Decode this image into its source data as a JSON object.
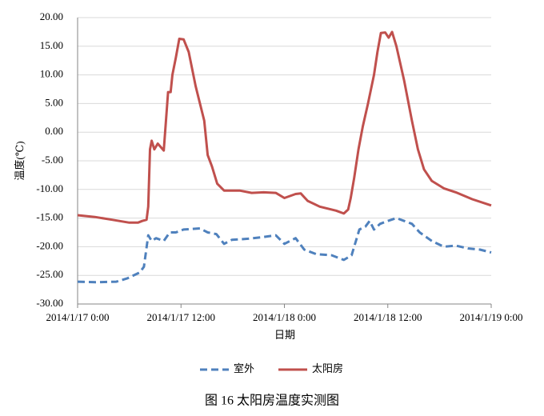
{
  "chart_data": {
    "type": "line",
    "caption": "图 16  太阳房温度实测图",
    "xlabel": "日期",
    "ylabel": "温度(℃)",
    "xlim": [
      0,
      48
    ],
    "xticks": [
      {
        "value": 0,
        "label": "2014/1/17 0:00"
      },
      {
        "value": 12,
        "label": "2014/1/17 12:00"
      },
      {
        "value": 24,
        "label": "2014/1/18 0:00"
      },
      {
        "value": 36,
        "label": "2014/1/18 12:00"
      },
      {
        "value": 48,
        "label": "2014/1/19 0:00"
      }
    ],
    "ylim": [
      -30,
      20
    ],
    "yticks": [
      {
        "value": 20,
        "label": "20.00"
      },
      {
        "value": 15,
        "label": "15.00"
      },
      {
        "value": 10,
        "label": "10.00"
      },
      {
        "value": 5,
        "label": "5.00"
      },
      {
        "value": 0,
        "label": "0.00"
      },
      {
        "value": -5,
        "label": "-5.00"
      },
      {
        "value": -10,
        "label": "-10.00"
      },
      {
        "value": -15,
        "label": "-15.00"
      },
      {
        "value": -20,
        "label": "-20.00"
      },
      {
        "value": -25,
        "label": "-25.00"
      },
      {
        "value": -30,
        "label": "-30.00"
      }
    ],
    "grid": true,
    "series": [
      {
        "name": "室外",
        "color": "#4f81bd",
        "dash": true,
        "x": [
          0,
          2.1,
          4.5,
          5.8,
          7.2,
          7.7,
          8.2,
          8.6,
          9.1,
          10,
          10.7,
          11.4,
          12.3,
          14.2,
          15.1,
          16.1,
          17,
          17.9,
          19.8,
          21.6,
          23,
          24,
          25.3,
          26.3,
          27.7,
          29.5,
          30.9,
          31.8,
          32.7,
          33.4,
          33.9,
          34.4,
          35.1,
          36,
          37,
          37.9,
          38.8,
          39.7,
          41.1,
          42.5,
          43.9,
          45.3,
          46.7,
          48
        ],
        "values": [
          -26.1,
          -26.2,
          -26.1,
          -25.5,
          -24.5,
          -23.5,
          -18,
          -19,
          -18.5,
          -19,
          -17.5,
          -17.5,
          -17,
          -16.8,
          -17.5,
          -17.8,
          -19.5,
          -18.8,
          -18.6,
          -18.3,
          -18,
          -19.5,
          -18.5,
          -20.5,
          -21.3,
          -21.5,
          -22.3,
          -21.5,
          -17,
          -16.5,
          -15.5,
          -17,
          -16,
          -15.5,
          -15,
          -15.5,
          -16,
          -17.5,
          -19,
          -20,
          -19.8,
          -20.3,
          -20.5,
          -21
        ]
      },
      {
        "name": "太阳房",
        "color": "#c0504d",
        "dash": false,
        "x": [
          0,
          2,
          4,
          6,
          7,
          7.5,
          8,
          8.2,
          8.4,
          8.6,
          8.9,
          9.3,
          10,
          10.5,
          10.8,
          11,
          11.4,
          11.8,
          12.3,
          12.9,
          13.7,
          14.7,
          15.1,
          15.6,
          16.2,
          17,
          18.8,
          20.2,
          21.6,
          23,
          24,
          25.3,
          25.9,
          26.7,
          28.1,
          30,
          30.9,
          31.4,
          31.7,
          32.1,
          32.6,
          33.1,
          33.7,
          34.4,
          34.8,
          35.2,
          35.7,
          36.1,
          36.5,
          37,
          37.9,
          38.8,
          39.5,
          40.2,
          41.1,
          42.5,
          43.9,
          45.8,
          48
        ],
        "values": [
          -14.5,
          -14.8,
          -15.3,
          -15.8,
          -15.8,
          -15.5,
          -15.3,
          -13,
          -3,
          -1.5,
          -3,
          -2,
          -3.2,
          7,
          7,
          10,
          13,
          16.3,
          16.2,
          14,
          8,
          2,
          -4,
          -6,
          -9,
          -10.2,
          -10.2,
          -10.6,
          -10.5,
          -10.6,
          -11.5,
          -10.8,
          -10.7,
          -12,
          -13,
          -13.7,
          -14.2,
          -13.5,
          -11.5,
          -8,
          -3,
          1,
          5,
          10,
          14,
          17.3,
          17.4,
          16.5,
          17.5,
          15,
          9,
          2,
          -3,
          -6.5,
          -8.5,
          -9.8,
          -10.5,
          -11.7,
          -12.8
        ]
      }
    ]
  }
}
